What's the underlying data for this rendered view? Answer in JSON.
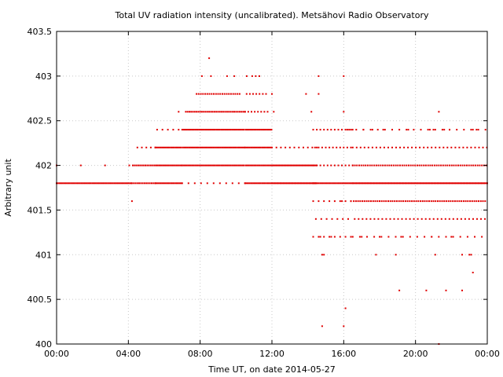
{
  "chart_data": {
    "type": "scatter",
    "title": "Total UV radiation intensity (uncalibrated). Metsähovi Radio Observatory",
    "xlabel": "Time UT, on date 2014-05-27",
    "ylabel": "Arbitrary unit",
    "ylim": [
      400,
      403.5
    ],
    "xlim_hours": [
      0,
      24
    ],
    "y_ticks": [
      "400",
      "400.5",
      "401",
      "401.5",
      "402",
      "402.5",
      "403",
      "403.5"
    ],
    "x_ticks": [
      "00:00",
      "04:00",
      "08:00",
      "12:00",
      "16:00",
      "20:00",
      "00:00"
    ],
    "grid": true,
    "point_color": "#e00000",
    "segments": [
      {
        "from": 0.0,
        "to": 4.2,
        "step": 0.08,
        "levels": [
          401.8
        ]
      },
      {
        "from": 0.0,
        "to": 4.2,
        "step": 1.35,
        "levels": [
          402.0
        ]
      },
      {
        "from": 4.2,
        "to": 5.5,
        "step": 0.1,
        "levels": [
          401.8,
          402.0
        ]
      },
      {
        "from": 4.5,
        "to": 5.5,
        "step": 0.25,
        "levels": [
          402.2
        ]
      },
      {
        "from": 5.5,
        "to": 7.0,
        "step": 0.08,
        "levels": [
          401.8,
          402.0,
          402.2
        ]
      },
      {
        "from": 5.6,
        "to": 7.0,
        "step": 0.3,
        "levels": [
          402.4
        ]
      },
      {
        "from": 7.0,
        "to": 10.5,
        "step": 0.08,
        "levels": [
          402.0,
          402.2,
          402.4
        ]
      },
      {
        "from": 7.2,
        "to": 10.5,
        "step": 0.1,
        "levels": [
          402.6
        ]
      },
      {
        "from": 7.8,
        "to": 10.3,
        "step": 0.12,
        "levels": [
          402.8
        ]
      },
      {
        "from": 7.0,
        "to": 10.5,
        "step": 0.35,
        "levels": [
          401.8
        ]
      },
      {
        "from": 10.5,
        "to": 12.0,
        "step": 0.08,
        "levels": [
          401.8,
          402.0,
          402.2,
          402.4
        ]
      },
      {
        "from": 10.5,
        "to": 11.8,
        "step": 0.18,
        "levels": [
          402.6,
          402.8
        ]
      },
      {
        "from": 12.0,
        "to": 14.5,
        "step": 0.06,
        "levels": [
          401.8,
          402.0
        ]
      },
      {
        "from": 12.0,
        "to": 14.5,
        "step": 0.25,
        "levels": [
          402.2
        ]
      },
      {
        "from": 14.3,
        "to": 16.5,
        "step": 0.08,
        "levels": [
          401.8
        ]
      },
      {
        "from": 14.3,
        "to": 16.5,
        "step": 0.2,
        "levels": [
          402.0,
          402.2,
          402.4
        ]
      },
      {
        "from": 14.3,
        "to": 16.5,
        "step": 0.3,
        "levels": [
          401.6,
          401.4,
          401.2
        ]
      },
      {
        "from": 16.5,
        "to": 24.0,
        "step": 0.06,
        "levels": [
          401.8
        ]
      },
      {
        "from": 16.5,
        "to": 24.0,
        "step": 0.12,
        "levels": [
          402.0,
          401.6
        ]
      },
      {
        "from": 16.5,
        "to": 24.0,
        "step": 0.22,
        "levels": [
          402.2,
          401.4
        ]
      },
      {
        "from": 16.5,
        "to": 24.0,
        "step": 0.4,
        "levels": [
          401.2,
          402.4
        ]
      }
    ],
    "points": [
      [
        4.2,
        401.6
      ],
      [
        8.5,
        403.2
      ],
      [
        8.1,
        403.0
      ],
      [
        8.6,
        403.0
      ],
      [
        9.5,
        403.0
      ],
      [
        9.9,
        403.0
      ],
      [
        10.6,
        403.0
      ],
      [
        10.9,
        403.0
      ],
      [
        11.1,
        403.0
      ],
      [
        11.3,
        403.0
      ],
      [
        6.8,
        402.6
      ],
      [
        12.1,
        402.6
      ],
      [
        12.0,
        402.8
      ],
      [
        13.9,
        402.8
      ],
      [
        14.6,
        402.8
      ],
      [
        14.2,
        402.6
      ],
      [
        14.6,
        403.0
      ],
      [
        16.0,
        403.0
      ],
      [
        16.0,
        402.6
      ],
      [
        21.3,
        402.6
      ],
      [
        16.2,
        402.4
      ],
      [
        16.4,
        402.4
      ],
      [
        17.1,
        402.4
      ],
      [
        17.6,
        402.4
      ],
      [
        18.2,
        402.4
      ],
      [
        19.6,
        402.4
      ],
      [
        20.8,
        402.4
      ],
      [
        21.0,
        402.4
      ],
      [
        21.6,
        402.4
      ],
      [
        21.9,
        402.4
      ],
      [
        23.2,
        402.4
      ],
      [
        23.4,
        402.4
      ],
      [
        14.3,
        401.2
      ],
      [
        14.7,
        401.2
      ],
      [
        15.3,
        401.2
      ],
      [
        14.8,
        401.0
      ],
      [
        14.9,
        401.0
      ],
      [
        17.8,
        401.0
      ],
      [
        18.9,
        401.0
      ],
      [
        21.1,
        401.0
      ],
      [
        22.6,
        401.0
      ],
      [
        23.0,
        401.0
      ],
      [
        23.1,
        401.0
      ],
      [
        23.2,
        400.8
      ],
      [
        19.1,
        400.6
      ],
      [
        20.6,
        400.6
      ],
      [
        21.7,
        400.6
      ],
      [
        22.6,
        400.6
      ],
      [
        16.1,
        400.4
      ],
      [
        14.8,
        400.2
      ],
      [
        16.0,
        400.2
      ],
      [
        21.3,
        400.0
      ],
      [
        16.4,
        401.6
      ],
      [
        15.9,
        401.6
      ],
      [
        19.2,
        401.2
      ],
      [
        20.9,
        401.2
      ],
      [
        22.0,
        401.2
      ],
      [
        17.0,
        401.2
      ],
      [
        18.0,
        401.2
      ]
    ]
  }
}
